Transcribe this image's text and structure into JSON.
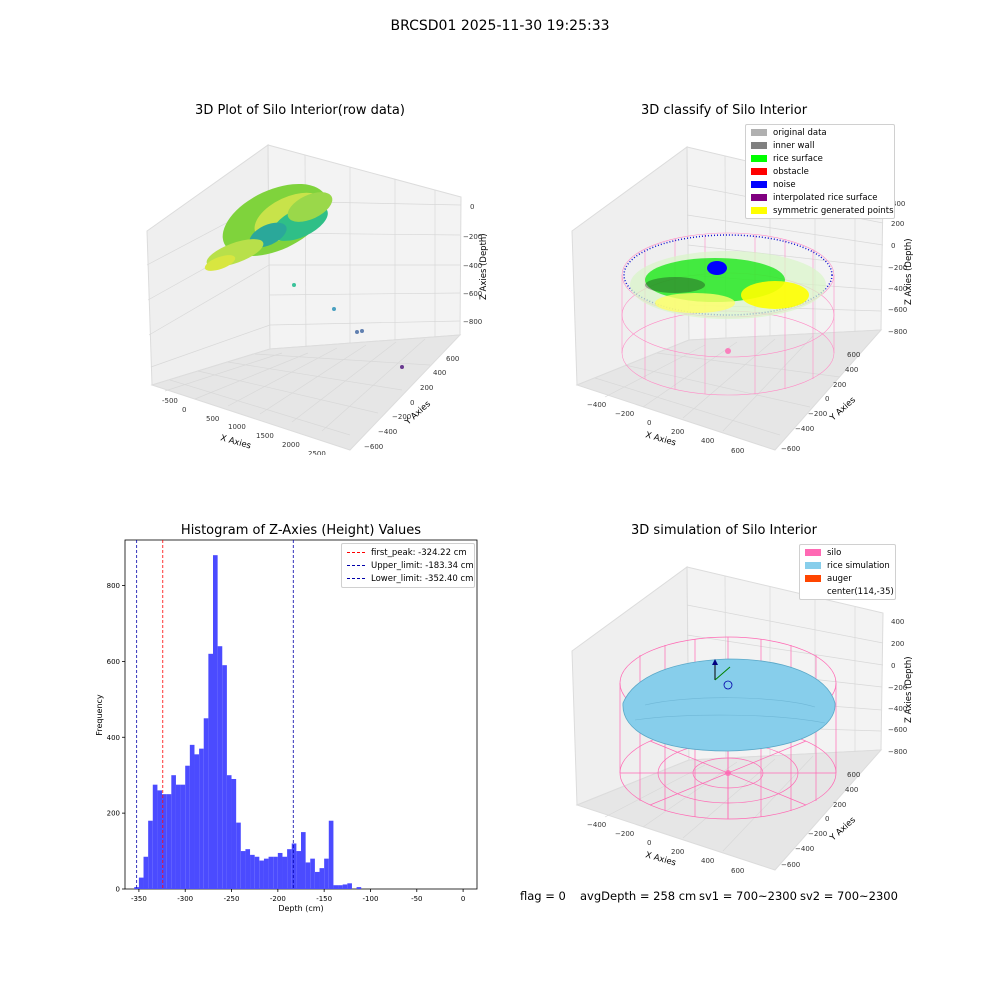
{
  "figure": {
    "suptitle": "BRCSD01 2025-11-30 19:25:33"
  },
  "panels": {
    "raw": {
      "title": "3D Plot of Silo Interior(row data)",
      "xlabel": "X Axies",
      "ylabel": "Y Axies",
      "zlabel": "Z Axies (Depth)",
      "xticks": [
        "-500",
        "0",
        "500",
        "1000",
        "1500",
        "2000",
        "2500"
      ],
      "yticks": [
        "600",
        "400",
        "200",
        "0",
        "−200",
        "−400",
        "−600"
      ],
      "zticks": [
        "0",
        "−200",
        "−400",
        "−600",
        "−800"
      ]
    },
    "classify": {
      "title": "3D classify of Silo Interior",
      "xlabel": "X Axies",
      "ylabel": "Y Axies",
      "zlabel": "Z Axies (Depth)",
      "xticks": [
        "−400",
        "−200",
        "0",
        "200",
        "400",
        "600"
      ],
      "yticks": [
        "600",
        "400",
        "200",
        "0",
        "−200",
        "−400",
        "−600"
      ],
      "zticks": [
        "400",
        "200",
        "0",
        "−200",
        "−400",
        "−600",
        "−800"
      ],
      "legend": [
        {
          "label": "original data",
          "color": "#b0b0b0"
        },
        {
          "label": "inner wall",
          "color": "#808080"
        },
        {
          "label": "rice surface",
          "color": "#00ff00"
        },
        {
          "label": "obstacle",
          "color": "#ff0000"
        },
        {
          "label": "noise",
          "color": "#0000ff"
        },
        {
          "label": "interpolated rice surface",
          "color": "#800080"
        },
        {
          "label": "symmetric generated points",
          "color": "#ffff00"
        }
      ]
    },
    "simulation": {
      "title": "3D simulation of Silo Interior",
      "xlabel": "X Axies",
      "ylabel": "Y Axies",
      "zlabel": "Z Axies (Depth)",
      "xticks": [
        "−400",
        "−200",
        "0",
        "200",
        "400",
        "600"
      ],
      "yticks": [
        "600",
        "400",
        "200",
        "0",
        "−200",
        "−400",
        "−600"
      ],
      "zticks": [
        "400",
        "200",
        "0",
        "−200",
        "−400",
        "−600",
        "−800"
      ],
      "legend": [
        {
          "label": "silo",
          "color": "#ff69b4"
        },
        {
          "label": "rice simulation",
          "color": "#87ceeb"
        },
        {
          "label": "auger",
          "color": "#ff4500"
        },
        {
          "label": "center(114,-35)",
          "color": ""
        }
      ]
    }
  },
  "status": {
    "flag": "flag = 0",
    "avg_depth": "avgDepth = 258 cm",
    "sv1": "sv1 = 700~2300",
    "sv2": "sv2 = 700~2300"
  },
  "chart_data": [
    {
      "type": "scatter",
      "subtype": "3d",
      "title": "3D Plot of Silo Interior(row data)",
      "xlabel": "X Axies",
      "ylabel": "Y Axies",
      "zlabel": "Z Axies (Depth)",
      "xlim": [
        -600,
        2700
      ],
      "ylim": [
        -700,
        700
      ],
      "zlim": [
        -950,
        50
      ],
      "notes_points": "dense point cloud near x≈0, z between −100 and −500; a few outlier points far away",
      "outliers": [
        {
          "x": 300,
          "y": -100,
          "z": -550
        },
        {
          "x": 1200,
          "y": -200,
          "z": -600
        },
        {
          "x": 1700,
          "y": -250,
          "z": -650
        },
        {
          "x": 1750,
          "y": -250,
          "z": -640
        },
        {
          "x": 2500,
          "y": -100,
          "z": -750
        }
      ],
      "grid": true
    },
    {
      "type": "scatter",
      "subtype": "3d",
      "title": "3D classify of Silo Interior",
      "xlabel": "X Axies",
      "ylabel": "Y Axies",
      "zlabel": "Z Axies (Depth)",
      "xlim": [
        -500,
        700
      ],
      "ylim": [
        -700,
        700
      ],
      "zlim": [
        -900,
        400
      ],
      "series": [
        {
          "name": "original data"
        },
        {
          "name": "inner wall"
        },
        {
          "name": "rice surface"
        },
        {
          "name": "obstacle"
        },
        {
          "name": "noise"
        },
        {
          "name": "interpolated rice surface"
        },
        {
          "name": "symmetric generated points"
        }
      ],
      "legend_position": "upper-right",
      "grid": true
    },
    {
      "type": "bar",
      "subtype": "histogram",
      "title": "Histogram of Z-Axies (Height) Values",
      "xlabel": "Depth (cm)",
      "ylabel": "Frequency",
      "xlim": [
        -365,
        15
      ],
      "ylim": [
        0,
        920
      ],
      "bin_width": 5,
      "bin_start": -355,
      "values": [
        5,
        30,
        85,
        180,
        275,
        260,
        250,
        250,
        300,
        275,
        275,
        325,
        380,
        355,
        370,
        450,
        620,
        880,
        640,
        590,
        300,
        290,
        175,
        100,
        105,
        90,
        85,
        75,
        80,
        85,
        85,
        95,
        85,
        105,
        120,
        100,
        150,
        70,
        80,
        45,
        55,
        80,
        180,
        10,
        10,
        12,
        15,
        0,
        5
      ],
      "xticks": [
        -350,
        -300,
        -250,
        -200,
        -150,
        -100,
        -50,
        0
      ],
      "yticks": [
        0,
        200,
        400,
        600,
        800
      ],
      "bar_color": "#4b4bff",
      "lines": [
        {
          "name": "first_peak: -324.22 cm",
          "x": -324.22,
          "color": "#ff0000"
        },
        {
          "name": "Upper_limit: -183.34 cm",
          "x": -183.34,
          "color": "#0000aa"
        },
        {
          "name": "Lower_limit: -352.40 cm",
          "x": -352.4,
          "color": "#0000aa"
        }
      ],
      "legend_position": "upper-right"
    },
    {
      "type": "scatter",
      "subtype": "3d-surface",
      "title": "3D simulation of Silo Interior",
      "xlabel": "X Axies",
      "ylabel": "Y Axies",
      "zlabel": "Z Axies (Depth)",
      "xlim": [
        -500,
        700
      ],
      "ylim": [
        -700,
        700
      ],
      "zlim": [
        -900,
        400
      ],
      "series": [
        {
          "name": "silo"
        },
        {
          "name": "rice simulation"
        },
        {
          "name": "auger"
        },
        {
          "name": "center(114,-35)"
        }
      ],
      "legend_position": "upper-right",
      "grid": true
    }
  ]
}
